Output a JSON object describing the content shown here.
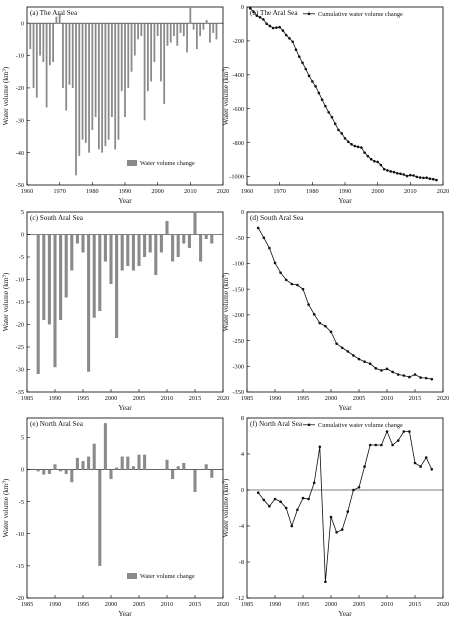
{
  "charts": [
    {
      "id": "a",
      "type": "bar",
      "title": "(a) The Aral Sea",
      "xlabel": "Year",
      "ylabel": "Water volume (km",
      "ylabel_sup": "3",
      "ylabel_end": ")",
      "xlim": [
        1960,
        2020
      ],
      "xticks": [
        1960,
        1970,
        1980,
        1990,
        2000,
        2010,
        2020
      ],
      "ylim": [
        -50,
        5
      ],
      "yticks": [
        -50,
        -40,
        -30,
        -20,
        -10,
        0
      ],
      "legend": "Water volume change",
      "legend_position": "bottom-right",
      "x": [
        1961,
        1962,
        1963,
        1964,
        1965,
        1966,
        1967,
        1968,
        1969,
        1970,
        1971,
        1972,
        1973,
        1974,
        1975,
        1976,
        1977,
        1978,
        1979,
        1980,
        1981,
        1982,
        1983,
        1984,
        1985,
        1986,
        1987,
        1988,
        1989,
        1990,
        1991,
        1992,
        1993,
        1994,
        1995,
        1996,
        1997,
        1998,
        1999,
        2000,
        2001,
        2002,
        2003,
        2004,
        2005,
        2006,
        2007,
        2008,
        2009,
        2010,
        2011,
        2012,
        2013,
        2014,
        2015,
        2016,
        2017,
        2018
      ],
      "y": [
        -8,
        -20,
        -23,
        -10,
        -12,
        -26,
        -13,
        -12,
        2,
        3,
        -20,
        -27,
        -19,
        -20,
        -47,
        -41,
        -36,
        -37,
        -40,
        -33,
        -29,
        -39,
        -40,
        -38,
        -36,
        -29,
        -39,
        -36,
        -21,
        -29,
        -20,
        -15,
        -10,
        -5,
        -4,
        -30,
        -21,
        -18,
        -12,
        -4,
        -18,
        -25,
        -7,
        -6,
        -4,
        -7,
        -3,
        -4,
        -9,
        5,
        -2,
        -8,
        -4,
        -2,
        1,
        -6,
        -3,
        -5
      ]
    },
    {
      "id": "b",
      "type": "line",
      "title": "(b) The Aral Sea",
      "xlabel": "Year",
      "ylabel": "Water volume (km",
      "ylabel_sup": "3",
      "ylabel_end": ")",
      "xlim": [
        1960,
        2020
      ],
      "xticks": [
        1960,
        1970,
        1980,
        1990,
        2000,
        2010,
        2020
      ],
      "ylim": [
        -1050,
        0
      ],
      "yticks": [
        -1000,
        -800,
        -600,
        -400,
        -200,
        0
      ],
      "legend": "Cumulative water volume change",
      "legend_position": "top-right",
      "x": [
        1961,
        1962,
        1963,
        1964,
        1965,
        1966,
        1967,
        1968,
        1969,
        1970,
        1971,
        1972,
        1973,
        1974,
        1975,
        1976,
        1977,
        1978,
        1979,
        1980,
        1981,
        1982,
        1983,
        1984,
        1985,
        1986,
        1987,
        1988,
        1989,
        1990,
        1991,
        1992,
        1993,
        1994,
        1995,
        1996,
        1997,
        1998,
        1999,
        2000,
        2001,
        2002,
        2003,
        2004,
        2005,
        2006,
        2007,
        2008,
        2009,
        2010,
        2011,
        2012,
        2013,
        2014,
        2015,
        2016,
        2017,
        2018
      ],
      "y": [
        -8,
        -28,
        -51,
        -61,
        -73,
        -99,
        -112,
        -124,
        -122,
        -119,
        -139,
        -166,
        -185,
        -205,
        -252,
        -293,
        -329,
        -366,
        -406,
        -439,
        -468,
        -507,
        -547,
        -585,
        -621,
        -650,
        -689,
        -725,
        -746,
        -775,
        -795,
        -810,
        -820,
        -825,
        -829,
        -859,
        -880,
        -898,
        -910,
        -914,
        -932,
        -957,
        -964,
        -970,
        -974,
        -981,
        -984,
        -988,
        -997,
        -992,
        -994,
        -1002,
        -1006,
        -1008,
        -1007,
        -1013,
        -1016,
        -1021
      ]
    },
    {
      "id": "c",
      "type": "bar",
      "title": "(c) South Aral Sea",
      "xlabel": "Year",
      "ylabel": "Water volume (km",
      "ylabel_sup": "3",
      "ylabel_end": ")",
      "xlim": [
        1985,
        2020
      ],
      "xticks": [
        1985,
        1990,
        1995,
        2000,
        2005,
        2010,
        2015,
        2020
      ],
      "ylim": [
        -35,
        5
      ],
      "yticks": [
        -35,
        -30,
        -25,
        -20,
        -15,
        -10,
        -5,
        0,
        5
      ],
      "x": [
        1987,
        1988,
        1989,
        1990,
        1991,
        1992,
        1993,
        1994,
        1995,
        1996,
        1997,
        1998,
        1999,
        2000,
        2001,
        2002,
        2003,
        2004,
        2005,
        2006,
        2007,
        2008,
        2009,
        2010,
        2011,
        2012,
        2013,
        2014,
        2015,
        2016,
        2017,
        2018
      ],
      "y": [
        -31,
        -19,
        -20,
        -29.5,
        -19,
        -14,
        -8,
        -2,
        -4,
        -30.5,
        -18.5,
        -17,
        -6,
        -11,
        -23,
        -8,
        -7,
        -8,
        -7,
        -5,
        -4,
        -9,
        -4,
        3,
        -6,
        -5,
        -2,
        -3,
        5,
        -6,
        -1,
        -2
      ]
    },
    {
      "id": "d",
      "type": "line",
      "title": "(d) South Aral Sea",
      "xlabel": "Year",
      "ylabel": "Water volume (km",
      "ylabel_sup": "3",
      "ylabel_end": ")",
      "xlim": [
        1985,
        2020
      ],
      "xticks": [
        1985,
        1990,
        1995,
        2000,
        2005,
        2010,
        2015,
        2020
      ],
      "ylim": [
        -350,
        0
      ],
      "yticks": [
        -350,
        -300,
        -250,
        -200,
        -150,
        -100,
        -50,
        0
      ],
      "x": [
        1987,
        1988,
        1989,
        1990,
        1991,
        1992,
        1993,
        1994,
        1995,
        1996,
        1997,
        1998,
        1999,
        2000,
        2001,
        2002,
        2003,
        2004,
        2005,
        2006,
        2007,
        2008,
        2009,
        2010,
        2011,
        2012,
        2013,
        2014,
        2015,
        2016,
        2017,
        2018
      ],
      "y": [
        -31,
        -50,
        -70,
        -99,
        -118,
        -132,
        -140,
        -142,
        -150,
        -180,
        -199,
        -216,
        -222,
        -233,
        -256,
        -264,
        -271,
        -279,
        -286,
        -291,
        -295,
        -304,
        -308,
        -305,
        -311,
        -316,
        -318,
        -321,
        -316,
        -322,
        -323,
        -325
      ]
    },
    {
      "id": "e",
      "type": "bar",
      "title": "(e) North Aral Sea",
      "xlabel": "Year",
      "ylabel": "Water volume (km",
      "ylabel_sup": "3",
      "ylabel_end": ")",
      "xlim": [
        1985,
        2020
      ],
      "xticks": [
        1985,
        1990,
        1995,
        2000,
        2005,
        2010,
        2015,
        2020
      ],
      "ylim": [
        -20,
        8
      ],
      "yticks": [
        -20,
        -15,
        -10,
        -5,
        0,
        5
      ],
      "legend": "Water volume change",
      "legend_position": "bottom-right",
      "x": [
        1987,
        1988,
        1989,
        1990,
        1991,
        1992,
        1993,
        1994,
        1995,
        1996,
        1997,
        1998,
        1999,
        2000,
        2001,
        2002,
        2003,
        2004,
        2005,
        2006,
        2007,
        2008,
        2009,
        2010,
        2011,
        2012,
        2013,
        2014,
        2015,
        2016,
        2017,
        2018
      ],
      "y": [
        -0.3,
        -0.8,
        -0.7,
        0.8,
        -0.3,
        -0.7,
        -2,
        1.8,
        1.3,
        2,
        4,
        -15,
        7.2,
        -1.5,
        0.3,
        2,
        2,
        0.5,
        2.3,
        2.3,
        0,
        0,
        0,
        1.5,
        -1.5,
        0.5,
        1,
        0,
        -3.5,
        0,
        0.8,
        -1.3
      ]
    },
    {
      "id": "f",
      "type": "line",
      "title": "(f) North Aral Sea",
      "xlabel": "Year",
      "ylabel": "Water volume (km",
      "ylabel_sup": "3",
      "ylabel_end": ")",
      "xlim": [
        1985,
        2020
      ],
      "xticks": [
        1985,
        1990,
        1995,
        2000,
        2005,
        2010,
        2015,
        2020
      ],
      "ylim": [
        -12,
        8
      ],
      "yticks": [
        -12,
        -8,
        -4,
        0,
        4,
        8
      ],
      "legend": "Cumulative water volume change",
      "legend_position": "top-right",
      "x": [
        1987,
        1988,
        1989,
        1990,
        1991,
        1992,
        1993,
        1994,
        1995,
        1996,
        1997,
        1998,
        1999,
        2000,
        2001,
        2002,
        2003,
        2004,
        2005,
        2006,
        2007,
        2008,
        2009,
        2010,
        2011,
        2012,
        2013,
        2014,
        2015,
        2016,
        2017,
        2018
      ],
      "y": [
        -0.3,
        -1.1,
        -1.8,
        -1,
        -1.3,
        -2,
        -4,
        -2.2,
        -0.9,
        -1,
        0.8,
        4.8,
        -10.2,
        -3,
        -4.7,
        -4.4,
        -2.4,
        0,
        0.3,
        2.6,
        5,
        5,
        5,
        6.5,
        5,
        5.5,
        6.5,
        6.5,
        3,
        2.6,
        3.6,
        2.3
      ]
    }
  ]
}
